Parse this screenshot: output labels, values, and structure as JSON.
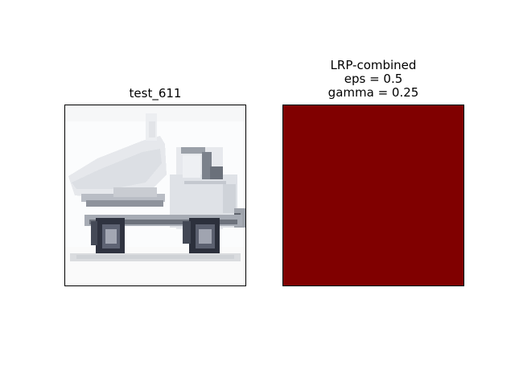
{
  "chart_data": [
    {
      "type": "image",
      "title": "test_611",
      "content": "pixelated image of a white dump truck",
      "colors": {
        "frame": "#000000",
        "background": "#ffffff"
      }
    },
    {
      "type": "heatmap",
      "title_lines": [
        "LRP-combined",
        "eps = 0.5",
        "gamma = 0.25"
      ],
      "uniform_value": "max",
      "colors": {
        "fill": "#800000",
        "frame": "#000000"
      }
    }
  ]
}
